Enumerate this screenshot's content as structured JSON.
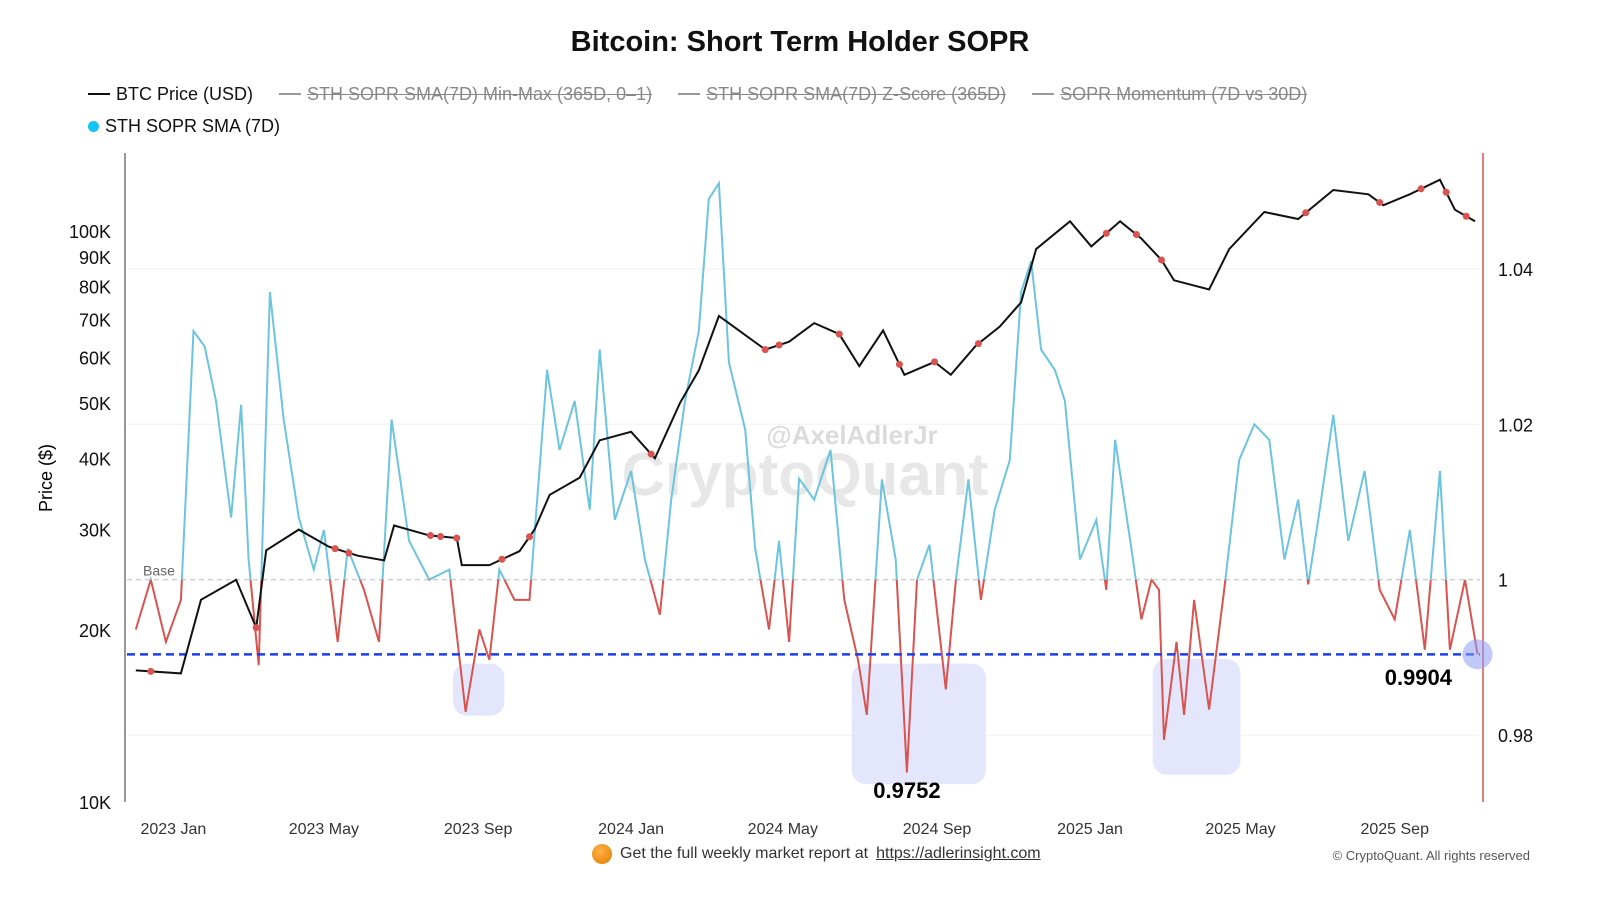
{
  "chart_data": {
    "type": "line",
    "title": "Bitcoin: Short Term Holder SOPR",
    "legend": [
      {
        "label": "BTC Price (USD)",
        "visible": true,
        "color": "#111111",
        "marker": "line"
      },
      {
        "label": "STH SOPR SMA(7D) Min-Max (365D, 0–1)",
        "visible": false,
        "color": "#999999",
        "marker": "line"
      },
      {
        "label": "STH SOPR SMA(7D) Z-Score (365D)",
        "visible": false,
        "color": "#999999",
        "marker": "line"
      },
      {
        "label": "SOPR Momentum (7D vs 30D)",
        "visible": false,
        "color": "#999999",
        "marker": "line"
      },
      {
        "label": "STH SOPR SMA (7D)",
        "visible": true,
        "color": "#12c3f4",
        "marker": "dot"
      }
    ],
    "legend_placement": "top-left",
    "xlim": [
      "2022-11-25",
      "2025-11-08"
    ],
    "x_ticks": [
      "2023 Jan",
      "2023 May",
      "2023 Sep",
      "2024 Jan",
      "2024 May",
      "2024 Sep",
      "2025 Jan",
      "2025 May",
      "2025 Sep"
    ],
    "x_tick_dates": [
      "2023-01-01",
      "2023-05-01",
      "2023-09-01",
      "2024-01-01",
      "2024-05-01",
      "2024-09-01",
      "2025-01-01",
      "2025-05-01",
      "2025-09-01"
    ],
    "y_left": {
      "label": "Price ($)",
      "scale": "log",
      "range": [
        10000,
        137000
      ],
      "ticks": [
        10000,
        20000,
        30000,
        40000,
        50000,
        60000,
        70000,
        80000,
        90000,
        100000
      ],
      "tick_labels": [
        "10K",
        "20K",
        "30K",
        "40K",
        "50K",
        "60K",
        "70K",
        "80K",
        "90K",
        "100K"
      ]
    },
    "y_right": {
      "scale": "linear",
      "range": [
        0.9714,
        1.0549
      ],
      "ticks": [
        0.98,
        1.0,
        1.02,
        1.04
      ],
      "tick_labels": [
        "0.98",
        "1",
        "1.02",
        "1.04"
      ],
      "axis_color": "#d9534f"
    },
    "grid": true,
    "colors": {
      "price": "#111111",
      "sopr_above": "#6cc4e0",
      "sopr_below": "#d9534f",
      "threshold": "#1a3ef0",
      "highlight": "#dfe3fb",
      "marker": "#d9534f"
    },
    "series": [
      {
        "name": "BTC Price (USD)",
        "axis": "left",
        "dates": [
          "2022-12-02",
          "2023-01-07",
          "2023-01-23",
          "2023-02-20",
          "2023-03-08",
          "2023-03-16",
          "2023-04-11",
          "2023-05-05",
          "2023-05-28",
          "2023-06-18",
          "2023-06-26",
          "2023-07-24",
          "2023-08-15",
          "2023-08-19",
          "2023-09-10",
          "2023-10-04",
          "2023-10-16",
          "2023-10-28",
          "2023-11-21",
          "2023-12-07",
          "2024-01-01",
          "2024-01-20",
          "2024-02-09",
          "2024-02-24",
          "2024-03-11",
          "2024-03-27",
          "2024-04-17",
          "2024-05-06",
          "2024-05-26",
          "2024-06-15",
          "2024-07-01",
          "2024-07-20",
          "2024-08-06",
          "2024-08-30",
          "2024-09-12",
          "2024-10-02",
          "2024-10-21",
          "2024-11-07",
          "2024-11-19",
          "2024-12-16",
          "2025-01-02",
          "2025-01-25",
          "2025-02-11",
          "2025-02-27",
          "2025-03-09",
          "2025-04-06",
          "2025-04-22",
          "2025-05-20",
          "2025-06-16",
          "2025-07-14",
          "2025-08-11",
          "2025-08-23",
          "2025-09-13",
          "2025-10-07",
          "2025-10-19",
          "2025-11-04"
        ],
        "values": [
          17000,
          16800,
          22600,
          24500,
          20200,
          27600,
          30000,
          28000,
          27000,
          26500,
          30500,
          29300,
          29000,
          26000,
          26000,
          27500,
          30000,
          34500,
          37000,
          43000,
          44500,
          40000,
          50000,
          57000,
          71000,
          67000,
          62000,
          64000,
          69000,
          66000,
          58000,
          67000,
          56000,
          59000,
          56000,
          63000,
          68000,
          75000,
          93000,
          104000,
          94000,
          104000,
          97000,
          89000,
          82000,
          79000,
          93000,
          108000,
          105000,
          118000,
          116000,
          111000,
          116000,
          123000,
          109000,
          104000
        ]
      },
      {
        "name": "STH SOPR SMA (7D)",
        "axis": "right",
        "dates": [
          "2022-12-02",
          "2022-12-14",
          "2022-12-26",
          "2023-01-07",
          "2023-01-17",
          "2023-01-26",
          "2023-02-04",
          "2023-02-16",
          "2023-02-24",
          "2023-03-02",
          "2023-03-10",
          "2023-03-19",
          "2023-03-30",
          "2023-04-11",
          "2023-04-23",
          "2023-05-01",
          "2023-05-12",
          "2023-05-20",
          "2023-06-02",
          "2023-06-14",
          "2023-06-24",
          "2023-07-08",
          "2023-07-24",
          "2023-08-09",
          "2023-08-22",
          "2023-09-02",
          "2023-09-10",
          "2023-09-18",
          "2023-09-30",
          "2023-10-12",
          "2023-10-26",
          "2023-11-05",
          "2023-11-17",
          "2023-11-29",
          "2023-12-07",
          "2023-12-19",
          "2024-01-01",
          "2024-01-12",
          "2024-01-24",
          "2024-02-02",
          "2024-02-13",
          "2024-02-24",
          "2024-03-03",
          "2024-03-11",
          "2024-03-19",
          "2024-04-01",
          "2024-04-09",
          "2024-04-20",
          "2024-04-28",
          "2024-05-06",
          "2024-05-14",
          "2024-05-26",
          "2024-06-08",
          "2024-06-19",
          "2024-06-30",
          "2024-07-07",
          "2024-07-19",
          "2024-07-30",
          "2024-08-08",
          "2024-08-16",
          "2024-08-26",
          "2024-09-08",
          "2024-09-16",
          "2024-09-26",
          "2024-10-06",
          "2024-10-17",
          "2024-10-29",
          "2024-11-07",
          "2024-11-15",
          "2024-11-23",
          "2024-12-04",
          "2024-12-12",
          "2024-12-24",
          "2025-01-06",
          "2025-01-14",
          "2025-01-21",
          "2025-02-03",
          "2025-02-11",
          "2025-02-19",
          "2025-02-25",
          "2025-03-01",
          "2025-03-11",
          "2025-03-17",
          "2025-03-25",
          "2025-04-06",
          "2025-04-18",
          "2025-04-30",
          "2025-05-12",
          "2025-05-24",
          "2025-06-05",
          "2025-06-16",
          "2025-06-24",
          "2025-07-02",
          "2025-07-14",
          "2025-07-26",
          "2025-08-08",
          "2025-08-20",
          "2025-09-01",
          "2025-09-13",
          "2025-09-25",
          "2025-10-07",
          "2025-10-15",
          "2025-10-27",
          "2025-11-06"
        ],
        "values": [
          0.9936,
          1.0,
          0.992,
          0.9974,
          1.032,
          1.03,
          1.023,
          1.008,
          1.0225,
          1.0026,
          0.989,
          1.037,
          1.0206,
          1.008,
          1.0013,
          1.0064,
          0.992,
          1.004,
          0.9987,
          0.992,
          1.0206,
          1.005,
          1.0,
          1.0013,
          0.983,
          0.9936,
          0.9897,
          1.0013,
          0.9974,
          0.9974,
          1.027,
          1.0167,
          1.023,
          1.009,
          1.0296,
          1.0077,
          1.014,
          1.0026,
          0.9955,
          1.0103,
          1.023,
          1.032,
          1.049,
          1.051,
          1.028,
          1.0193,
          1.004,
          0.9936,
          1.005,
          0.992,
          1.013,
          1.0103,
          1.0167,
          0.9974,
          0.9897,
          0.9826,
          1.0129,
          1.0026,
          0.9752,
          1.0,
          1.0045,
          0.9859,
          1.0,
          1.0129,
          0.9974,
          1.009,
          1.0154,
          1.037,
          1.041,
          1.0296,
          1.027,
          1.023,
          1.0026,
          1.0077,
          0.9987,
          1.018,
          1.004,
          0.9949,
          1.0,
          0.9987,
          0.9794,
          0.992,
          0.9826,
          0.9974,
          0.9833,
          0.9987,
          1.0154,
          1.02,
          1.018,
          1.0026,
          1.0103,
          0.9994,
          1.0077,
          1.0212,
          1.005,
          1.014,
          0.9987,
          0.9949,
          1.0064,
          0.991,
          1.014,
          0.991,
          1.0,
          0.9904
        ]
      }
    ],
    "price_markers": [
      "2022-12-14",
      "2023-03-08",
      "2023-05-10",
      "2023-05-21",
      "2023-07-25",
      "2023-08-02",
      "2023-08-15",
      "2023-09-20",
      "2023-10-12",
      "2024-01-17",
      "2024-04-17",
      "2024-04-28",
      "2024-06-15",
      "2024-08-02",
      "2024-08-30",
      "2024-10-04",
      "2025-01-14",
      "2025-02-07",
      "2025-02-27",
      "2025-06-22",
      "2025-08-20",
      "2025-09-22",
      "2025-10-12",
      "2025-10-28"
    ],
    "reference_lines": [
      {
        "label": "Base",
        "value": 1.0,
        "axis": "right",
        "style": "dashed",
        "color": "#bbbbbb"
      },
      {
        "label": "0.9904",
        "value": 0.9904,
        "axis": "right",
        "style": "dashed",
        "color": "#1a3ef0"
      }
    ],
    "annotations": [
      {
        "label": "0.9752",
        "date": "2024-08-08",
        "value": 0.9752
      },
      {
        "label": "0.9904",
        "date": "2025-11-06",
        "value": 0.9904
      }
    ],
    "highlight_regions": [
      {
        "from": "2023-08-12",
        "to": "2023-09-22",
        "ymin": 0.9825,
        "ymax": 0.9892
      },
      {
        "from": "2024-06-25",
        "to": "2024-10-10",
        "ymin": 0.9737,
        "ymax": 0.9892
      },
      {
        "from": "2025-02-20",
        "to": "2025-05-01",
        "ymin": 0.9749,
        "ymax": 0.9898
      }
    ]
  },
  "watermark": {
    "brand": "CryptoQuant",
    "handle": "@AxelAdlerJr"
  },
  "footer": {
    "text": "Get the full weekly market report at",
    "link": "https://adlerinsight.com",
    "copyright": "© CryptoQuant. All rights reserved"
  }
}
